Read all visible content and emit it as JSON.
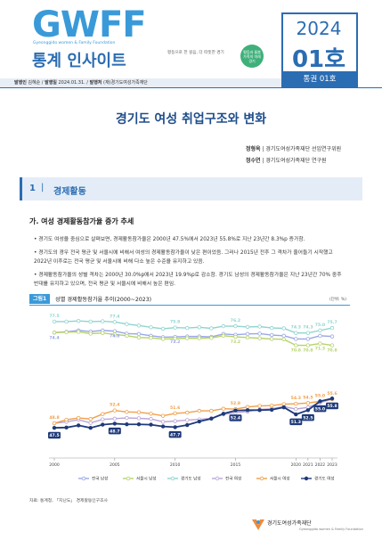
{
  "header": {
    "logo": "GWFF",
    "logo_subtitle": "Gyeonggido women & Family Foundation",
    "series_title": "통계 인사이트",
    "slogan": "평등으로 한 걸음, 더 따뜻한 경기",
    "badge_lines": [
      "평등과 돌봄",
      "가족의 미래",
      "경기"
    ],
    "year": "2024",
    "issue": "01호",
    "issue_total": "통권 01호"
  },
  "meta": {
    "publisher_label": "발행인",
    "publisher": "김혜순",
    "date_label": "발행일",
    "date": "2024.01.31.",
    "org_label": "발행처",
    "org": "(재)경기도여성가족재단"
  },
  "title": "경기도 여성 취업구조와 변화",
  "authors": [
    {
      "name": "정형옥",
      "affil": "경기도여성가족재단 선임연구위원"
    },
    {
      "name": "정수연",
      "affil": "경기도여성가족재단 연구원"
    }
  ],
  "section": {
    "number": "1",
    "title": "경제활동"
  },
  "subsection": "가. 여성 경제활동참가율 증가 추세",
  "bullets": [
    "경기도 여성을 중심으로 살펴보면, 경제활동참가율은 2000년 47.5%에서 2023년 55.8%로 지난 23년간 8.3%p 증가함.",
    "경기도의 경우 전국 평균 및 서울시에 비해서 여성의 경제활동참가율이 낮은 편이었음. 그러나 2015년 전후 그 격차가 줄어들기 시작했고 2022년 이후로는 전국 평균 및 서울시에 비해 다소 높은 수준을 유지하고 있음.",
    "경제활동참가율의 성별 격차는 2000년 30.0%p에서 2023년 19.9%p로 감소함. 경기도 남성의 경제활동참가율은 지난 23년간 70% 중후반대를 유지하고 있으며, 전국 평균 및 서울시에 비해서 높은 편임."
  ],
  "figure": {
    "label": "그림1",
    "title": "성별 경제활동참가율 추이(2000~2023)",
    "unit": "(단위: %)",
    "source": "자료: 통계청, 「지난도」 경제활동인구조사"
  },
  "chart_data": {
    "type": "line",
    "title": "성별 경제활동참가율 추이(2000~2023)",
    "x": [
      2000,
      2001,
      2002,
      2003,
      2004,
      2005,
      2006,
      2007,
      2008,
      2009,
      2010,
      2011,
      2012,
      2013,
      2014,
      2015,
      2016,
      2017,
      2018,
      2019,
      2020,
      2021,
      2022,
      2023
    ],
    "x_tick_labels": [
      "2000",
      "2005",
      "2010",
      "2015",
      "2020",
      "2021",
      "2022",
      "2023"
    ],
    "x_ticks": [
      2000,
      2005,
      2010,
      2015,
      2020,
      2021,
      2022,
      2023
    ],
    "ylim": [
      40,
      80
    ],
    "series": [
      {
        "name": "전국 남성",
        "color": "#9aa7e6",
        "marker": "#ffffff",
        "values": [
          74.4,
          74.6,
          75.0,
          74.7,
          75.0,
          74.8,
          74.1,
          74.0,
          73.5,
          73.1,
          73.2,
          73.3,
          73.3,
          73.2,
          74.0,
          73.8,
          74.0,
          74.1,
          73.7,
          73.5,
          72.6,
          72.6,
          73.5,
          73.3
        ]
      },
      {
        "name": "서울시 남성",
        "color": "#b6d36a",
        "marker": "#ffffff",
        "values": [
          74.4,
          74.5,
          74.6,
          74.1,
          74.3,
          73.9,
          73.5,
          73.0,
          72.9,
          72.6,
          72.7,
          72.8,
          72.8,
          72.9,
          73.5,
          73.2,
          73.0,
          72.8,
          72.6,
          72.5,
          70.8,
          70.8,
          71.3,
          70.8
        ]
      },
      {
        "name": "경기도 남성",
        "color": "#8fd4cf",
        "marker": "#ffffff",
        "values": [
          77.5,
          77.5,
          77.7,
          77.5,
          77.6,
          77.4,
          76.8,
          76.4,
          75.9,
          75.5,
          75.8,
          75.7,
          75.9,
          75.6,
          76.2,
          76.2,
          76.0,
          76.1,
          75.7,
          75.6,
          74.3,
          74.3,
          75.0,
          75.7
        ]
      },
      {
        "name": "전국 여성",
        "color": "#b9a5d8",
        "marker": "#ffffff",
        "values": [
          48.8,
          49.2,
          49.8,
          48.9,
          49.9,
          50.1,
          50.3,
          50.2,
          50.0,
          49.2,
          49.4,
          49.7,
          49.9,
          50.2,
          51.3,
          51.8,
          52.1,
          52.7,
          52.9,
          53.5,
          52.8,
          53.3,
          54.6,
          55.6
        ]
      },
      {
        "name": "서울시 여성",
        "color": "#f0a04b",
        "marker": "#ffffff",
        "values": [
          48.8,
          49.8,
          50.3,
          50.0,
          51.4,
          52.4,
          52.0,
          51.9,
          51.5,
          50.9,
          51.6,
          51.8,
          52.3,
          52.3,
          52.9,
          52.8,
          53.4,
          53.7,
          53.8,
          54.2,
          54.3,
          54.5,
          55.0,
          55.6
        ]
      },
      {
        "name": "경기도 여성",
        "color": "#1f3a7a",
        "marker": "#1f3a7a",
        "values": [
          47.5,
          47.6,
          48.2,
          47.5,
          48.4,
          48.7,
          48.5,
          48.5,
          48.4,
          47.9,
          47.7,
          48.3,
          49.3,
          50.1,
          51.5,
          52.4,
          52.5,
          52.5,
          52.6,
          53.3,
          51.3,
          52.5,
          55.0,
          55.8
        ]
      }
    ],
    "annotations": [
      {
        "text": "77.5",
        "series": 2,
        "x": 2000
      },
      {
        "text": "74.4",
        "series": 0,
        "x": 2000
      },
      {
        "text": "77.4",
        "series": 2,
        "x": 2005
      },
      {
        "text": "74.8",
        "series": 0,
        "x": 2005
      },
      {
        "text": "75.8",
        "series": 2,
        "x": 2010
      },
      {
        "text": "73.2",
        "series": 0,
        "x": 2010
      },
      {
        "text": "76.2",
        "series": 2,
        "x": 2015
      },
      {
        "text": "73.2",
        "series": 1,
        "x": 2015
      },
      {
        "text": "74.3",
        "series": 2,
        "x": 2020
      },
      {
        "text": "70.8",
        "series": 1,
        "x": 2020
      },
      {
        "text": "74.3",
        "series": 2,
        "x": 2021
      },
      {
        "text": "70.8",
        "series": 1,
        "x": 2021
      },
      {
        "text": "75.0",
        "series": 2,
        "x": 2022
      },
      {
        "text": "71.3",
        "series": 1,
        "x": 2022
      },
      {
        "text": "75.7",
        "series": 2,
        "x": 2023
      },
      {
        "text": "70.8",
        "series": 1,
        "x": 2023
      },
      {
        "text": "48.8",
        "series": 4,
        "x": 2000
      },
      {
        "text": "47.5",
        "series": 5,
        "x": 2000
      },
      {
        "text": "52.4",
        "series": 4,
        "x": 2005
      },
      {
        "text": "48.7",
        "series": 5,
        "x": 2005
      },
      {
        "text": "51.6",
        "series": 4,
        "x": 2010
      },
      {
        "text": "47.7",
        "series": 5,
        "x": 2010
      },
      {
        "text": "52.8",
        "series": 4,
        "x": 2015
      },
      {
        "text": "52.4",
        "series": 5,
        "x": 2015
      },
      {
        "text": "54.3",
        "series": 4,
        "x": 2020
      },
      {
        "text": "51.3",
        "series": 5,
        "x": 2020
      },
      {
        "text": "54.5",
        "series": 4,
        "x": 2021
      },
      {
        "text": "52.5",
        "series": 5,
        "x": 2021
      },
      {
        "text": "55.0",
        "series": 4,
        "x": 2022
      },
      {
        "text": "55.0",
        "series": 5,
        "x": 2022
      },
      {
        "text": "55.6",
        "series": 4,
        "x": 2023
      },
      {
        "text": "55.8",
        "series": 5,
        "x": 2023
      }
    ],
    "boxed_series": 5,
    "legend_position": "bottom"
  },
  "footer": {
    "org": "경기도여성가족재단",
    "org_en": "Gyeonggido women & Family Foundation"
  }
}
